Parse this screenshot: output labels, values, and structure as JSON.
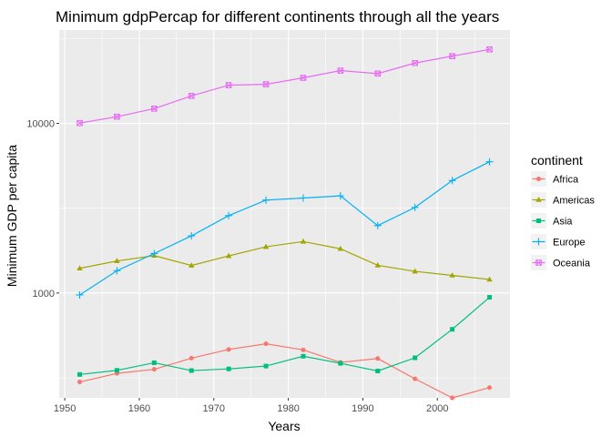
{
  "chart_data": {
    "type": "line",
    "title": "Minimum gdpPercap for different continents through all the years",
    "xlabel": "Years",
    "ylabel": "Minimum GDP per capita",
    "x": [
      1952,
      1957,
      1962,
      1967,
      1972,
      1977,
      1982,
      1987,
      1992,
      1997,
      2002,
      2007
    ],
    "xlim": [
      1949.25,
      2009.75
    ],
    "ylim": [
      241,
      35500
    ],
    "y_scale": "log10",
    "x_ticks": [
      1950,
      1960,
      1970,
      1980,
      1990,
      2000
    ],
    "x_tick_labels": [
      "1950",
      "1960",
      "1970",
      "1980",
      "1990",
      "2000"
    ],
    "y_ticks": [
      1000,
      10000
    ],
    "y_tick_labels": [
      "1000",
      "10000"
    ],
    "grid": true,
    "legend": {
      "title": "continent",
      "position": "right"
    },
    "series": [
      {
        "name": "Africa",
        "color": "#F8766D",
        "marker": "circle",
        "values": [
          299,
          336,
          355,
          413,
          465,
          502,
          462,
          390,
          411,
          312,
          241,
          277
        ]
      },
      {
        "name": "Americas",
        "color": "#A3A500",
        "marker": "triangle",
        "values": [
          1398,
          1544,
          1662,
          1453,
          1655,
          1874,
          2011,
          1823,
          1456,
          1342,
          1270,
          1202
        ]
      },
      {
        "name": "Asia",
        "color": "#00BF7D",
        "marker": "square",
        "values": [
          331,
          350,
          388,
          349,
          357,
          371,
          424,
          385,
          347,
          415,
          611,
          944
        ]
      },
      {
        "name": "Europe",
        "color": "#00B0F6",
        "marker": "plus",
        "values": [
          974,
          1353,
          1709,
          2172,
          2860,
          3528,
          3631,
          3739,
          2497,
          3193,
          4604,
          5937
        ]
      },
      {
        "name": "Oceania",
        "color": "#E76BF3",
        "marker": "boxcross",
        "values": [
          10040,
          10950,
          12218,
          14526,
          16789,
          16999,
          18555,
          20478,
          19654,
          22682,
          24915,
          27273
        ]
      }
    ]
  }
}
